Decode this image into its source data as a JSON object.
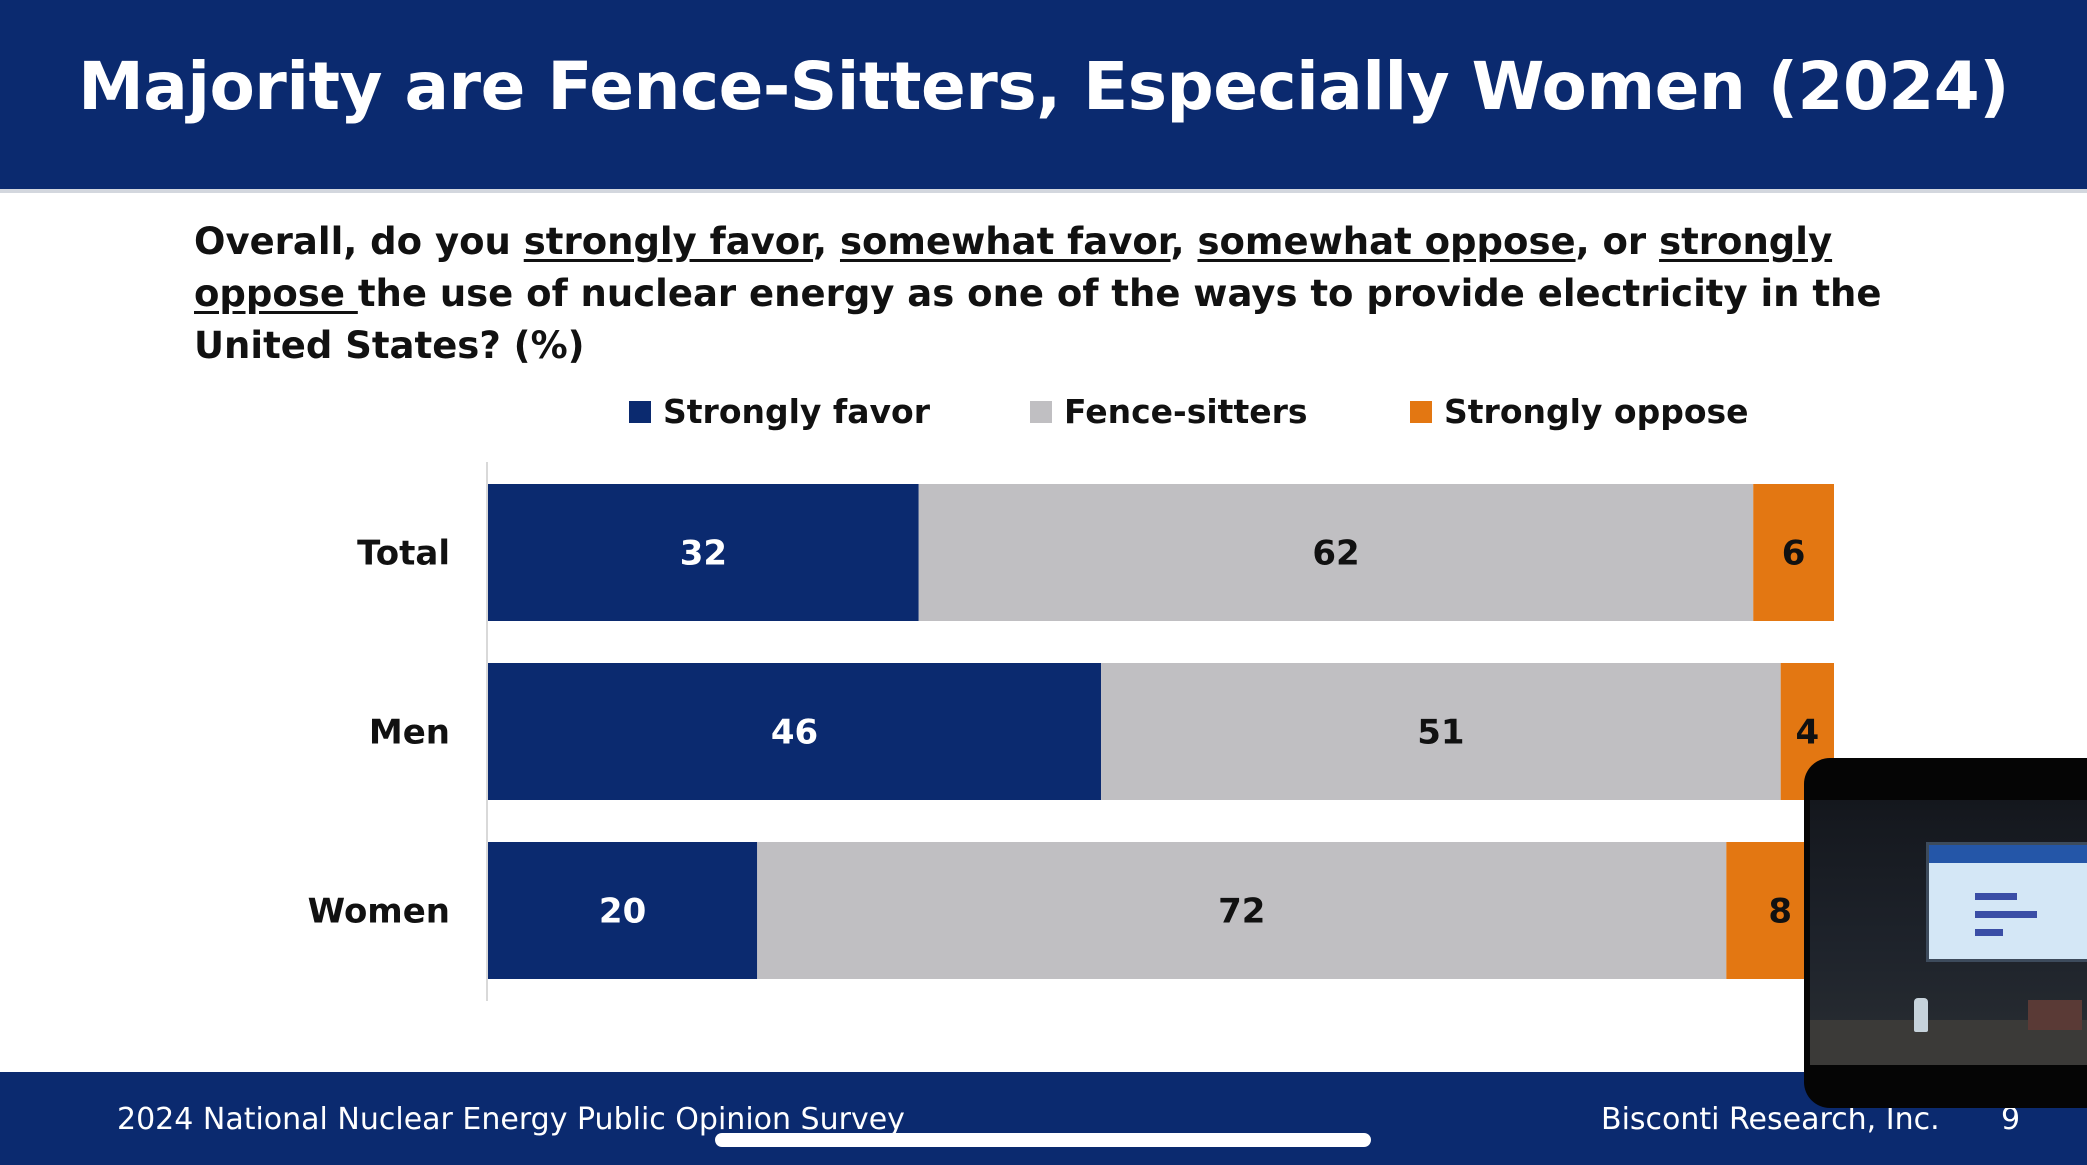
{
  "slide": {
    "title": "Majority are Fence-Sitters, Especially Women (2024)",
    "question": {
      "p1": "Overall, do you ",
      "o1": "strongly favor",
      "s1": ", ",
      "o2": "somewhat favor",
      "s2": ", ",
      "o3": "somewhat oppose",
      "s3": ", or ",
      "o4": "strongly oppose ",
      "p2": "the use of nuclear energy as one of the ways to provide electricity in the United States? (%)"
    }
  },
  "footer": {
    "source": "2024 National Nuclear Energy Public Opinion Survey",
    "org": "Bisconti Research, Inc.",
    "page": "9"
  },
  "colors": {
    "header_bg": "#0b2a6f",
    "strongly_favor": "#0b2a6f",
    "fence_sitters": "#c0bfc2",
    "strongly_oppose": "#e37712"
  },
  "chart_data": {
    "type": "bar",
    "orientation": "horizontal",
    "stacked": true,
    "unit": "%",
    "categories": [
      "Total",
      "Men",
      "Women"
    ],
    "series": [
      {
        "name": "Strongly favor",
        "values": [
          32,
          46,
          20
        ],
        "color": "#0b2a6f"
      },
      {
        "name": "Fence-sitters",
        "values": [
          62,
          51,
          72
        ],
        "color": "#c0bfc2"
      },
      {
        "name": "Strongly oppose",
        "values": [
          6,
          4,
          8
        ],
        "color": "#e37712"
      }
    ],
    "legend_position": "top",
    "grid": false
  }
}
